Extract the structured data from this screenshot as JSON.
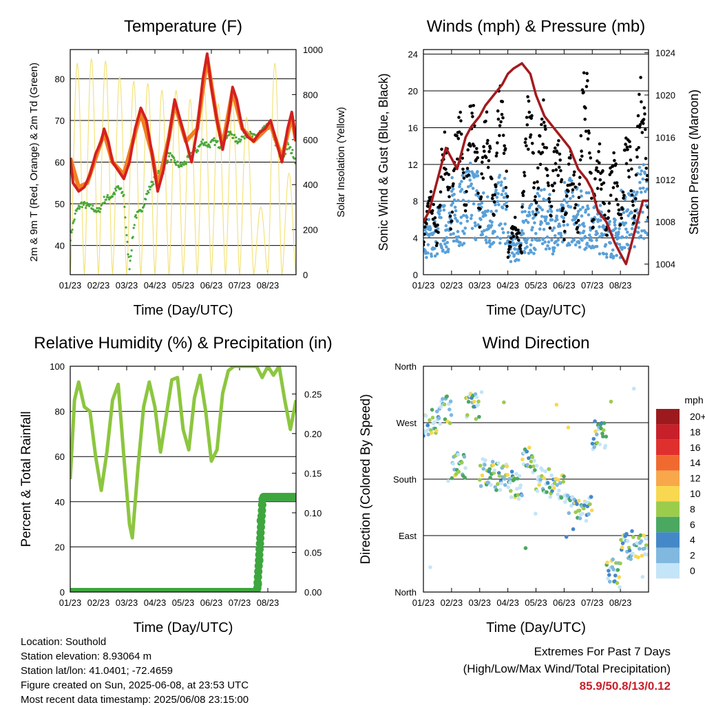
{
  "chart_data": [
    {
      "type": "line",
      "title": "Temperature (F)",
      "xlabel": "Time (Day/UTC)",
      "ylabel": "2m & 9m T (Red, Orange) & 2m Td (Green)",
      "ylabel_right": "Solar Insolation (Yellow)",
      "x_ticks": [
        "01/23",
        "02/23",
        "03/23",
        "04/23",
        "05/23",
        "06/23",
        "07/23",
        "08/23"
      ],
      "ylim": [
        33,
        87
      ],
      "y_ticks": [
        40,
        50,
        60,
        70,
        80
      ],
      "ylim_right": [
        0,
        1000
      ],
      "y_ticks_right": [
        0,
        200,
        400,
        600,
        800,
        1000
      ],
      "series": [
        {
          "name": "2m T",
          "color": "#d42020",
          "y_axis": "left",
          "values": [
            [
              0,
              61
            ],
            [
              0.1,
              55
            ],
            [
              0.3,
              53
            ],
            [
              0.5,
              54
            ],
            [
              0.7,
              57
            ],
            [
              0.9,
              62
            ],
            [
              1.1,
              65
            ],
            [
              1.2,
              68
            ],
            [
              1.35,
              65
            ],
            [
              1.5,
              60
            ],
            [
              1.7,
              58
            ],
            [
              1.9,
              56
            ],
            [
              2.1,
              60
            ],
            [
              2.3,
              68
            ],
            [
              2.5,
              73
            ],
            [
              2.7,
              70
            ],
            [
              2.9,
              62
            ],
            [
              3.1,
              53
            ],
            [
              3.3,
              58
            ],
            [
              3.5,
              66
            ],
            [
              3.7,
              75
            ],
            [
              3.9,
              70
            ],
            [
              4.1,
              65
            ],
            [
              4.3,
              60
            ],
            [
              4.5,
              68
            ],
            [
              4.7,
              80
            ],
            [
              4.85,
              86
            ],
            [
              5.0,
              78
            ],
            [
              5.2,
              70
            ],
            [
              5.4,
              63
            ],
            [
              5.6,
              70
            ],
            [
              5.75,
              78
            ],
            [
              5.9,
              75
            ],
            [
              6.1,
              68
            ],
            [
              6.3,
              66
            ],
            [
              6.5,
              65
            ],
            [
              6.7,
              67
            ],
            [
              6.9,
              68
            ],
            [
              7.1,
              70
            ],
            [
              7.3,
              65
            ],
            [
              7.5,
              60
            ],
            [
              7.7,
              68
            ],
            [
              7.85,
              72
            ],
            [
              8.0,
              65
            ]
          ]
        },
        {
          "name": "9m T",
          "color": "#f08020",
          "y_axis": "left",
          "values": [
            [
              0,
              61
            ],
            [
              0.3,
              54
            ],
            [
              0.6,
              55
            ],
            [
              0.9,
              61
            ],
            [
              1.2,
              67
            ],
            [
              1.5,
              60
            ],
            [
              1.9,
              57
            ],
            [
              2.3,
              67
            ],
            [
              2.5,
              72
            ],
            [
              2.9,
              62
            ],
            [
              3.1,
              54
            ],
            [
              3.5,
              66
            ],
            [
              3.7,
              74
            ],
            [
              4.1,
              65
            ],
            [
              4.5,
              68
            ],
            [
              4.85,
              85
            ],
            [
              5.2,
              70
            ],
            [
              5.4,
              64
            ],
            [
              5.75,
              77
            ],
            [
              6.1,
              68
            ],
            [
              6.5,
              65
            ],
            [
              7.1,
              69
            ],
            [
              7.5,
              61
            ],
            [
              7.85,
              71
            ],
            [
              8.0,
              65
            ]
          ]
        },
        {
          "name": "2m Td",
          "color": "#4aa83a",
          "y_axis": "left",
          "values": [
            [
              0,
              42
            ],
            [
              0.2,
              48
            ],
            [
              0.4,
              50
            ],
            [
              0.8,
              49
            ],
            [
              1.0,
              48
            ],
            [
              1.2,
              51
            ],
            [
              1.5,
              52
            ],
            [
              1.7,
              54
            ],
            [
              1.9,
              52
            ],
            [
              2.0,
              42
            ],
            [
              2.1,
              35
            ],
            [
              2.3,
              47
            ],
            [
              2.5,
              48
            ],
            [
              2.7,
              52
            ],
            [
              2.9,
              55
            ],
            [
              3.1,
              57
            ],
            [
              3.3,
              58
            ],
            [
              3.5,
              62
            ],
            [
              3.7,
              60
            ],
            [
              3.9,
              59
            ],
            [
              4.1,
              60
            ],
            [
              4.3,
              62
            ],
            [
              4.5,
              63
            ],
            [
              4.7,
              65
            ],
            [
              4.9,
              64
            ],
            [
              5.1,
              65
            ],
            [
              5.3,
              64
            ],
            [
              5.5,
              66
            ],
            [
              5.7,
              67
            ],
            [
              5.9,
              65
            ],
            [
              6.1,
              66
            ],
            [
              6.3,
              67
            ],
            [
              6.5,
              66
            ],
            [
              6.7,
              67
            ],
            [
              6.9,
              68
            ],
            [
              7.1,
              69
            ],
            [
              7.3,
              64
            ],
            [
              7.5,
              60
            ],
            [
              7.7,
              64
            ],
            [
              7.9,
              62
            ],
            [
              8.0,
              60
            ]
          ]
        },
        {
          "name": "Solar Insolation",
          "color": "#f2e070",
          "y_axis": "right",
          "daily_peaks": [
            940,
            960,
            950,
            880,
            860,
            850,
            820,
            820,
            780,
            820,
            760,
            760,
            700,
            300,
            940,
            450
          ]
        }
      ]
    },
    {
      "type": "scatter",
      "title": "Winds (mph) & Pressure (mb)",
      "xlabel": "Time (Day/UTC)",
      "ylabel": "Sonic Wind & Gust (Blue, Black)",
      "ylabel_right": "Station Pressure (Maroon)",
      "x_ticks": [
        "01/23",
        "02/23",
        "03/23",
        "04/23",
        "05/23",
        "06/23",
        "07/23",
        "08/23"
      ],
      "ylim": [
        0,
        24.5
      ],
      "y_ticks": [
        0,
        4,
        8,
        12,
        16,
        20,
        24
      ],
      "ylim_right": [
        1003,
        1024.3
      ],
      "y_ticks_right": [
        1004,
        1008,
        1012,
        1016,
        1020,
        1024
      ],
      "series": [
        {
          "name": "Pressure",
          "color": "#a31a1e",
          "y_axis": "right",
          "values": [
            [
              0,
              1008
            ],
            [
              0.2,
              1009
            ],
            [
              0.4,
              1011
            ],
            [
              0.6,
              1013
            ],
            [
              0.8,
              1015
            ],
            [
              1.0,
              1014
            ],
            [
              1.2,
              1013
            ],
            [
              1.5,
              1016
            ],
            [
              1.7,
              1017
            ],
            [
              2.0,
              1018
            ],
            [
              2.2,
              1019
            ],
            [
              2.5,
              1020
            ],
            [
              2.8,
              1021
            ],
            [
              3.0,
              1022
            ],
            [
              3.2,
              1022.5
            ],
            [
              3.5,
              1023
            ],
            [
              3.8,
              1022
            ],
            [
              4.0,
              1020
            ],
            [
              4.3,
              1018
            ],
            [
              4.6,
              1017
            ],
            [
              4.9,
              1016
            ],
            [
              5.2,
              1015
            ],
            [
              5.5,
              1013
            ],
            [
              5.8,
              1012
            ],
            [
              6.0,
              1011
            ],
            [
              6.2,
              1009
            ],
            [
              6.5,
              1008
            ],
            [
              6.8,
              1006
            ],
            [
              7.0,
              1005
            ],
            [
              7.2,
              1004
            ],
            [
              7.4,
              1006
            ],
            [
              7.6,
              1008
            ],
            [
              7.8,
              1010
            ],
            [
              8.0,
              1010
            ]
          ]
        },
        {
          "name": "Sonic Wind",
          "color": "#5aa0d8",
          "y_axis": "left",
          "daily_means": [
            4,
            5,
            7,
            8,
            6,
            7,
            3,
            5,
            6,
            5,
            7,
            6,
            5,
            4,
            6,
            8
          ]
        },
        {
          "name": "Gust",
          "color": "#000000",
          "y_axis": "left",
          "daily_max": [
            9,
            15,
            18,
            20,
            17,
            21,
            6,
            19,
            19,
            15,
            13,
            22,
            14,
            13,
            15,
            22
          ]
        }
      ]
    },
    {
      "type": "line",
      "title": "Relative Humidity (%) & Precipitation (in)",
      "xlabel": "Time (Day/UTC)",
      "ylabel": "Percent & Total Rainfall",
      "x_ticks": [
        "01/23",
        "02/23",
        "03/23",
        "04/23",
        "05/23",
        "06/23",
        "07/23",
        "08/23"
      ],
      "ylim": [
        0,
        100
      ],
      "y_ticks": [
        0,
        20,
        40,
        60,
        80,
        100
      ],
      "ylim_right": [
        0,
        0.285
      ],
      "y_ticks_right": [
        "0.00",
        "0.05",
        "0.10",
        "0.15",
        "0.20",
        "0.25"
      ],
      "series": [
        {
          "name": "Relative Humidity",
          "color": "#8cc63f",
          "y_axis": "left",
          "values": [
            [
              0,
              50
            ],
            [
              0.15,
              85
            ],
            [
              0.3,
              93
            ],
            [
              0.5,
              82
            ],
            [
              0.7,
              80
            ],
            [
              0.9,
              60
            ],
            [
              1.1,
              45
            ],
            [
              1.3,
              62
            ],
            [
              1.5,
              85
            ],
            [
              1.7,
              92
            ],
            [
              1.9,
              60
            ],
            [
              2.1,
              30
            ],
            [
              2.2,
              24
            ],
            [
              2.4,
              55
            ],
            [
              2.6,
              82
            ],
            [
              2.8,
              93
            ],
            [
              3.0,
              82
            ],
            [
              3.2,
              62
            ],
            [
              3.4,
              78
            ],
            [
              3.6,
              94
            ],
            [
              3.8,
              95
            ],
            [
              4.0,
              72
            ],
            [
              4.2,
              63
            ],
            [
              4.4,
              86
            ],
            [
              4.6,
              96
            ],
            [
              4.8,
              80
            ],
            [
              5.0,
              58
            ],
            [
              5.2,
              63
            ],
            [
              5.4,
              88
            ],
            [
              5.6,
              98
            ],
            [
              5.8,
              100
            ],
            [
              6.0,
              100
            ],
            [
              6.2,
              100
            ],
            [
              6.4,
              100
            ],
            [
              6.6,
              100
            ],
            [
              6.8,
              95
            ],
            [
              7.0,
              100
            ],
            [
              7.2,
              96
            ],
            [
              7.4,
              100
            ],
            [
              7.6,
              85
            ],
            [
              7.8,
              72
            ],
            [
              8.0,
              85
            ]
          ]
        },
        {
          "name": "Total Rainfall",
          "color": "#3ea63e",
          "y_axis": "right",
          "values": [
            [
              0,
              0
            ],
            [
              6.6,
              0
            ],
            [
              6.65,
              0.01
            ],
            [
              6.7,
              0.04
            ],
            [
              6.75,
              0.09
            ],
            [
              6.8,
              0.11
            ],
            [
              6.85,
              0.12
            ],
            [
              8.0,
              0.12
            ]
          ]
        }
      ]
    },
    {
      "type": "scatter",
      "title": "Wind Direction",
      "xlabel": "Time (Day/UTC)",
      "ylabel": "Direction (Colored By Speed)",
      "x_ticks": [
        "01/23",
        "02/23",
        "03/23",
        "04/23",
        "05/23",
        "06/23",
        "07/23",
        "08/23"
      ],
      "y_ticks": [
        "North",
        "East",
        "South",
        "West",
        "North"
      ],
      "ylim": [
        0,
        360
      ],
      "daily_direction": [
        270,
        290,
        200,
        295,
        190,
        185,
        170,
        210,
        180,
        165,
        140,
        135,
        250,
        30,
        75,
        75
      ],
      "colorbar": {
        "title": "mph",
        "labels": [
          "20+",
          "18",
          "16",
          "14",
          "12",
          "10",
          "8",
          "6",
          "4",
          "2",
          "0"
        ],
        "colors": [
          "#9c1a1e",
          "#c8202a",
          "#e0302e",
          "#f06a30",
          "#f8a84a",
          "#f8d850",
          "#9ccc4c",
          "#4aa860",
          "#4488c8",
          "#80b8e0",
          "#c4e4f8"
        ]
      }
    }
  ],
  "info": {
    "location": "Location: Southold",
    "elevation": "Station elevation: 8.93064 m",
    "latlon": "Station lat/lon: 41.0401; -72.4659",
    "created": "Figure created on Sun, 2025-06-08, at 23:53 UTC",
    "recent": "Most recent data timestamp: 2025/06/08 23:15:00"
  },
  "extremes": {
    "line1": "Extremes For Past 7 Days",
    "line2": "(High/Low/Max Wind/Total Precipitation)",
    "value": "85.9/50.8/13/0.12"
  }
}
